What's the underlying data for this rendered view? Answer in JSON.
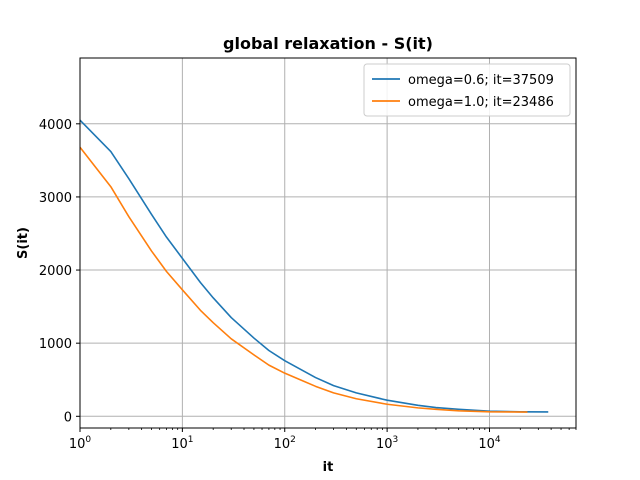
{
  "chart_data": {
    "type": "line",
    "title": "global relaxation - S(it)",
    "xlabel": "it",
    "ylabel": "S(it)",
    "xscale": "log",
    "xlim": [
      1,
      70000
    ],
    "ylim": [
      -160,
      4900
    ],
    "xticks": [
      {
        "value": 1,
        "base": "10",
        "exp": "0"
      },
      {
        "value": 10,
        "base": "10",
        "exp": "1"
      },
      {
        "value": 100,
        "base": "10",
        "exp": "2"
      },
      {
        "value": 1000,
        "base": "10",
        "exp": "3"
      },
      {
        "value": 10000,
        "base": "10",
        "exp": "4"
      }
    ],
    "yticks": [
      {
        "value": 0,
        "label": "0"
      },
      {
        "value": 1000,
        "label": "1000"
      },
      {
        "value": 2000,
        "label": "2000"
      },
      {
        "value": 3000,
        "label": "3000"
      },
      {
        "value": 4000,
        "label": "4000"
      }
    ],
    "grid": true,
    "legend_position": "top-right",
    "series": [
      {
        "name": "omega=0.6; it=37509",
        "color": "#1f77b4",
        "x": [
          1,
          2,
          3,
          5,
          7,
          10,
          15,
          20,
          30,
          50,
          70,
          100,
          200,
          300,
          500,
          1000,
          2000,
          3000,
          5000,
          10000,
          20000,
          37509
        ],
        "y": [
          4050,
          3620,
          3250,
          2760,
          2450,
          2160,
          1830,
          1620,
          1350,
          1070,
          900,
          760,
          530,
          420,
          320,
          220,
          150,
          120,
          95,
          70,
          62,
          60
        ]
      },
      {
        "name": "omega=1.0; it=23486",
        "color": "#ff7f0e",
        "x": [
          1,
          2,
          3,
          5,
          7,
          10,
          15,
          20,
          30,
          50,
          70,
          100,
          200,
          300,
          500,
          1000,
          2000,
          3000,
          5000,
          10000,
          23486
        ],
        "y": [
          3680,
          3140,
          2730,
          2260,
          1980,
          1730,
          1450,
          1280,
          1060,
          840,
          700,
          590,
          410,
          320,
          240,
          165,
          115,
          95,
          75,
          62,
          58
        ]
      }
    ]
  }
}
